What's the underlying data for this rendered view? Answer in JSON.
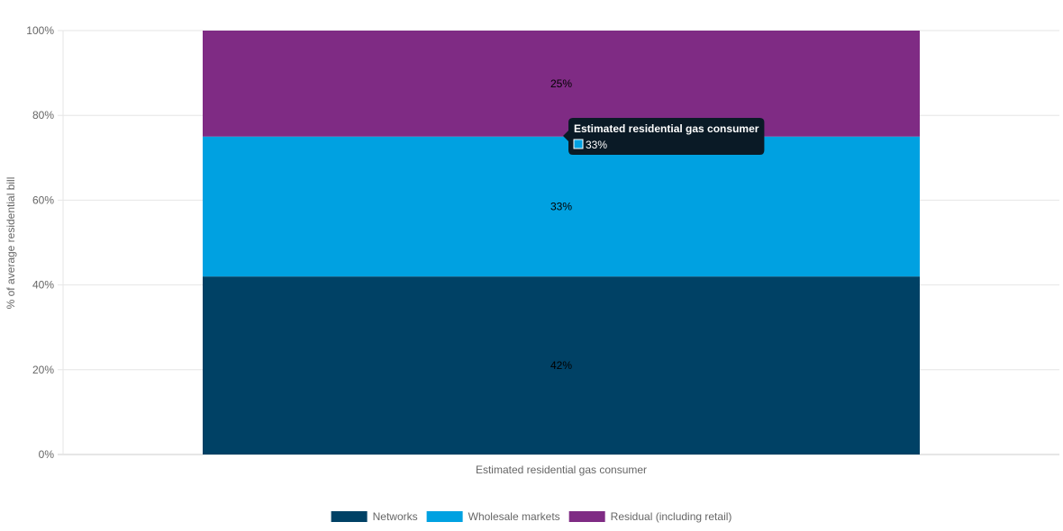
{
  "chart_data": {
    "type": "bar",
    "stacked": true,
    "categories": [
      "Estimated residential gas consumer"
    ],
    "series": [
      {
        "name": "Networks",
        "values": [
          42
        ],
        "label": "42%",
        "color": "#004165"
      },
      {
        "name": "Wholesale markets",
        "values": [
          33
        ],
        "label": "33%",
        "color": "#00a1e1"
      },
      {
        "name": "Residual (including retail)",
        "values": [
          25
        ],
        "label": "25%",
        "color": "#7f2b84"
      }
    ],
    "ylabel": "% of average residential bill",
    "xlabel": "",
    "ylim": [
      0,
      100
    ],
    "yticks": [
      "0%",
      "20%",
      "40%",
      "60%",
      "80%",
      "100%"
    ],
    "ytick_values": [
      0,
      20,
      40,
      60,
      80,
      100
    ],
    "grid": true,
    "legend_position": "bottom",
    "tooltip": {
      "title": "Estimated residential gas consumer",
      "value": "33%",
      "color": "#00a1e1"
    }
  }
}
